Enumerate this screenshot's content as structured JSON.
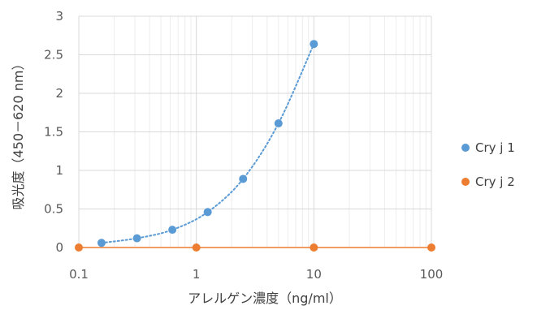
{
  "chart_data": {
    "type": "scatter",
    "title": "",
    "xlabel": "アレルゲン濃度（ng/ml）",
    "ylabel": "吸光度（450－620 nm）",
    "x_scale": "log",
    "xlim": [
      0.1,
      100
    ],
    "ylim": [
      0,
      3
    ],
    "x_ticks": [
      "0.1",
      "1",
      "10",
      "100"
    ],
    "y_ticks": [
      "0",
      "0.5",
      "1",
      "1.5",
      "2",
      "2.5",
      "3"
    ],
    "grid": true,
    "legend_position": "right",
    "series": [
      {
        "name": "Cry j 1",
        "color": "#5B9BD5",
        "trendline": "dotted",
        "x": [
          0.156,
          0.3125,
          0.625,
          1.25,
          2.5,
          5,
          10
        ],
        "y": [
          0.06,
          0.12,
          0.23,
          0.46,
          0.89,
          1.61,
          2.64
        ]
      },
      {
        "name": "Cry j 2",
        "color": "#ED7D31",
        "trendline": "solid",
        "x": [
          0.1,
          1,
          10,
          100
        ],
        "y": [
          0,
          0,
          0,
          0
        ]
      }
    ]
  }
}
